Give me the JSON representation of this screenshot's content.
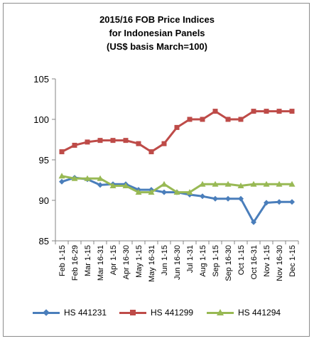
{
  "chart_data": {
    "type": "line",
    "title_lines": [
      "2015/16 FOB Price Indices",
      "for Indonesian Panels",
      "(US$ basis March=100)"
    ],
    "xlabel": "",
    "ylabel": "",
    "ylim": [
      85,
      105
    ],
    "yticks": [
      85,
      90,
      95,
      100,
      105
    ],
    "grid": false,
    "legend_position": "bottom",
    "categories": [
      "Feb 1-15",
      "Feb 16-29",
      "Mar 1-15",
      "Mar 16-31",
      "Apr 1-15",
      "Apr 16-30",
      "May 1-15",
      "May 16-31",
      "Jun 1-15",
      "Jun 16-30",
      "Jul 1-31",
      "Aug 1-15",
      "Sep 1-15",
      "Sep 16-30",
      "Oct 1-15",
      "Oct 16-31",
      "Nov 1-15",
      "Nov 16-30",
      "Dec 1-15"
    ],
    "series": [
      {
        "name": "HS 441231",
        "color": "#4a7ebb",
        "marker": "diamond",
        "values": [
          92.3,
          92.8,
          92.6,
          91.9,
          92.0,
          92.0,
          91.3,
          91.3,
          91.0,
          91.0,
          90.7,
          90.5,
          90.2,
          90.2,
          90.2,
          87.3,
          89.7,
          89.8,
          89.8
        ]
      },
      {
        "name": "HS 441299",
        "color": "#be4b48",
        "marker": "square",
        "values": [
          96.0,
          96.8,
          97.2,
          97.4,
          97.4,
          97.4,
          97.0,
          96.0,
          97.0,
          99.0,
          100.0,
          100.0,
          101.0,
          100.0,
          100.0,
          101.0,
          101.0,
          101.0,
          101.0
        ]
      },
      {
        "name": "HS 441294",
        "color": "#98b954",
        "marker": "triangle",
        "values": [
          93.0,
          92.7,
          92.7,
          92.7,
          91.8,
          91.8,
          91.0,
          91.0,
          92.0,
          91.0,
          91.0,
          92.0,
          92.0,
          92.0,
          91.8,
          92.0,
          92.0,
          92.0,
          92.0
        ]
      }
    ]
  }
}
